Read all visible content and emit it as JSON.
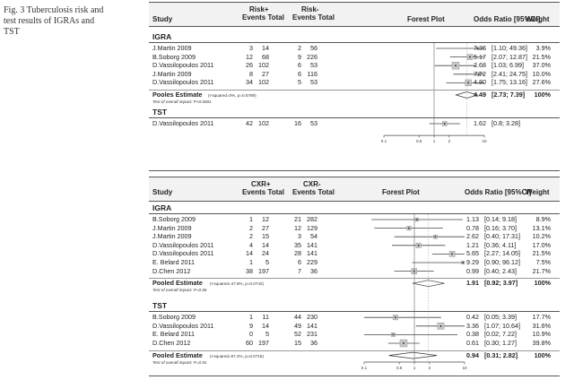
{
  "caption": "Fig. 3 Tuberculosis risk and test results of IGRAs and TST",
  "chart_data": [
    {
      "type": "forest",
      "headers": {
        "study": "Study",
        "pos_label": "Risk+",
        "neg_label": "Risk-",
        "events_total": "Events Total",
        "plot": "Forest Plot",
        "or": "Odds Ratio [95%CI]",
        "weight": "Weight"
      },
      "x_scale": "log",
      "x_ticks": [
        "0.1",
        "0.5",
        "1",
        "2",
        "10"
      ],
      "x_tick_values": [
        0.1,
        0.5,
        1,
        2,
        10
      ],
      "xlim": [
        0.1,
        10
      ],
      "groups": [
        {
          "name": "IGRA",
          "studies": [
            {
              "study": "J.Martin 2009",
              "pe": "3",
              "pt": "14",
              "ne": "2",
              "nt": "56",
              "or_text": "7.36",
              "ci_text": "[1.10; 49.36]",
              "weight": "3.9%",
              "or": 7.36,
              "lo": 1.1,
              "hi": 49.36
            },
            {
              "study": "B.Soborg 2009",
              "pe": "12",
              "pt": "68",
              "ne": "9",
              "nt": "226",
              "or_text": "5.17",
              "ci_text": "[2.07; 12.87]",
              "weight": "21.5%",
              "or": 5.17,
              "lo": 2.07,
              "hi": 12.87
            },
            {
              "study": "D.Vassilopoulos 2011",
              "pe": "26",
              "pt": "102",
              "ne": "6",
              "nt": "53",
              "or_text": "2.68",
              "ci_text": "[1.03; 6.99]",
              "weight": "37.0%",
              "or": 2.68,
              "lo": 1.03,
              "hi": 6.99
            },
            {
              "study": "J.Martin 2009",
              "pe": "8",
              "pt": "27",
              "ne": "6",
              "nt": "116",
              "or_text": "7.72",
              "ci_text": "[2.41; 24.75]",
              "weight": "10.0%",
              "or": 7.72,
              "lo": 2.41,
              "hi": 24.75
            },
            {
              "study": "D.Vassilopoulos 2011",
              "pe": "34",
              "pt": "102",
              "ne": "5",
              "nt": "53",
              "or_text": "4.80",
              "ci_text": "[1.75; 13.16]",
              "weight": "27.6%",
              "or": 4.8,
              "lo": 1.75,
              "hi": 13.16
            }
          ],
          "pooled": {
            "label": "Pooles Estimate",
            "het": "(I-squared=0%, p=0.6789)",
            "test": "Test of overall impact: P<0.0001",
            "or_text": "4.49",
            "ci_text": "[2.73; 7.39]",
            "weight": "100%",
            "or": 4.49,
            "lo": 2.73,
            "hi": 7.39
          }
        },
        {
          "name": "TST",
          "studies": [
            {
              "study": "D.Vassilopoulos 2011",
              "pe": "42",
              "pt": "102",
              "ne": "16",
              "nt": "53",
              "or_text": "1.62",
              "ci_text": "[0.8; 3.28]",
              "weight": "",
              "or": 1.62,
              "lo": 0.8,
              "hi": 3.28
            }
          ]
        }
      ]
    },
    {
      "type": "forest",
      "headers": {
        "study": "Study",
        "pos_label": "CXR+",
        "neg_label": "CXR-",
        "events_total": "Events Total",
        "plot": "Forest Plot",
        "or": "Odds Ratio [95%CI]",
        "weight": "Weight"
      },
      "x_scale": "log",
      "x_ticks": [
        "0.1",
        "0.5",
        "1",
        "2",
        "10"
      ],
      "x_tick_values": [
        0.1,
        0.5,
        1,
        2,
        10
      ],
      "xlim": [
        0.1,
        10
      ],
      "groups": [
        {
          "name": "IGRA",
          "studies": [
            {
              "study": "B.Soborg 2009",
              "pe": "1",
              "pt": "12",
              "ne": "21",
              "nt": "282",
              "or_text": "1.13",
              "ci_text": "[0.14; 9.18]",
              "weight": "8.9%",
              "or": 1.13,
              "lo": 0.14,
              "hi": 9.18
            },
            {
              "study": "J.Martin 2009",
              "pe": "2",
              "pt": "27",
              "ne": "12",
              "nt": "129",
              "or_text": "0.78",
              "ci_text": "[0.16; 3.70]",
              "weight": "13.1%",
              "or": 0.78,
              "lo": 0.16,
              "hi": 3.7
            },
            {
              "study": "J.Martin 2009",
              "pe": "2",
              "pt": "15",
              "ne": "3",
              "nt": "54",
              "or_text": "2.62",
              "ci_text": "[0.40; 17.31]",
              "weight": "10.2%",
              "or": 2.62,
              "lo": 0.4,
              "hi": 17.31
            },
            {
              "study": "D.Vassilopoulos 2011",
              "pe": "4",
              "pt": "14",
              "ne": "35",
              "nt": "141",
              "or_text": "1.21",
              "ci_text": "[0.36; 4.11]",
              "weight": "17.0%",
              "or": 1.21,
              "lo": 0.36,
              "hi": 4.11
            },
            {
              "study": "D.Vassilopoulos 2011",
              "pe": "14",
              "pt": "24",
              "ne": "28",
              "nt": "141",
              "or_text": "5.65",
              "ci_text": "[2.27; 14.05]",
              "weight": "21.5%",
              "or": 5.65,
              "lo": 2.27,
              "hi": 14.05
            },
            {
              "study": "E. Belard 2011",
              "pe": "1",
              "pt": "5",
              "ne": "6",
              "nt": "229",
              "or_text": "9.29",
              "ci_text": "[0.90; 96.12]",
              "weight": "7.5%",
              "or": 9.29,
              "lo": 0.9,
              "hi": 96.12
            },
            {
              "study": "D.Chen 2012",
              "pe": "38",
              "pt": "197",
              "ne": "7",
              "nt": "36",
              "or_text": "0.99",
              "ci_text": "[0.40; 2.43]",
              "weight": "21.7%",
              "or": 0.99,
              "lo": 0.4,
              "hi": 2.43
            }
          ],
          "pooled": {
            "label": "Pooled Estimate",
            "het": "(I-squared=47.8%, p=0.0742)",
            "test": "Test of overall impact: P=0.06",
            "or_text": "1.91",
            "ci_text": "[0.92; 3.97]",
            "weight": "100%",
            "or": 1.91,
            "lo": 0.92,
            "hi": 3.97
          }
        },
        {
          "name": "TST",
          "studies": [
            {
              "study": "B.Soborg 2009",
              "pe": "1",
              "pt": "11",
              "ne": "44",
              "nt": "230",
              "or_text": "0.42",
              "ci_text": "[0.05; 3.39]",
              "weight": "17.7%",
              "or": 0.42,
              "lo": 0.05,
              "hi": 3.39
            },
            {
              "study": "D.Vassilopoulos 2011",
              "pe": "9",
              "pt": "14",
              "ne": "49",
              "nt": "141",
              "or_text": "3.36",
              "ci_text": "[1.07; 10.64]",
              "weight": "31.6%",
              "or": 3.36,
              "lo": 1.07,
              "hi": 10.64
            },
            {
              "study": "E. Belard 2011",
              "pe": "0",
              "pt": "5",
              "ne": "52",
              "nt": "231",
              "or_text": "0.38",
              "ci_text": "[0.02; 7.22]",
              "weight": "10.9%",
              "or": 0.38,
              "lo": 0.02,
              "hi": 7.22
            },
            {
              "study": "D.Chen 2012",
              "pe": "60",
              "pt": "197",
              "ne": "15",
              "nt": "36",
              "or_text": "0.61",
              "ci_text": "[0.30; 1.27]",
              "weight": "39.8%",
              "or": 0.61,
              "lo": 0.3,
              "hi": 1.27
            }
          ],
          "pooled": {
            "label": "Pooled Estimate",
            "het": "(I-squared=57.2%, p=0.0716)",
            "test": "Test of overall impact: P=0.91",
            "or_text": "0.94",
            "ci_text": "[0.31; 2.82]",
            "weight": "100%",
            "or": 0.94,
            "lo": 0.31,
            "hi": 2.82
          }
        }
      ]
    }
  ]
}
